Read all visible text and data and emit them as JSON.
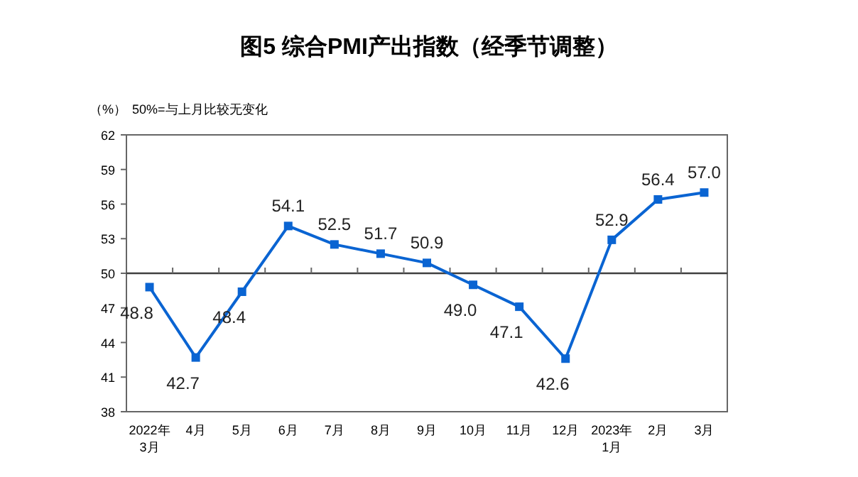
{
  "chart_data": {
    "type": "line",
    "title": "图5 综合PMI产出指数（经季节调整）",
    "ylabel": "（%）",
    "annotations": [
      "50%=与上月比较无变化"
    ],
    "categories": [
      "2022年\n3月",
      "4月",
      "5月",
      "6月",
      "7月",
      "8月",
      "9月",
      "10月",
      "11月",
      "12月",
      "2023年\n1月",
      "2月",
      "3月"
    ],
    "series": [
      {
        "color": "#0a64d2",
        "values": [
          48.8,
          42.7,
          48.4,
          54.1,
          52.5,
          51.7,
          50.9,
          49.0,
          47.1,
          42.6,
          52.9,
          56.4,
          57.0
        ],
        "value_labels": [
          "48.8",
          "42.7",
          "48.4",
          "54.1",
          "52.5",
          "51.7",
          "50.9",
          "49.0",
          "47.1",
          "42.6",
          "52.9",
          "56.4",
          "57.0"
        ]
      }
    ],
    "ylim": [
      38,
      62
    ],
    "yticks": [
      38,
      41,
      44,
      47,
      50,
      53,
      56,
      59,
      62
    ],
    "ref_lines": [
      {
        "axis": "y",
        "value": 50,
        "color": "#404040"
      }
    ],
    "marker": "square",
    "line_style": "solid",
    "grid": false
  }
}
